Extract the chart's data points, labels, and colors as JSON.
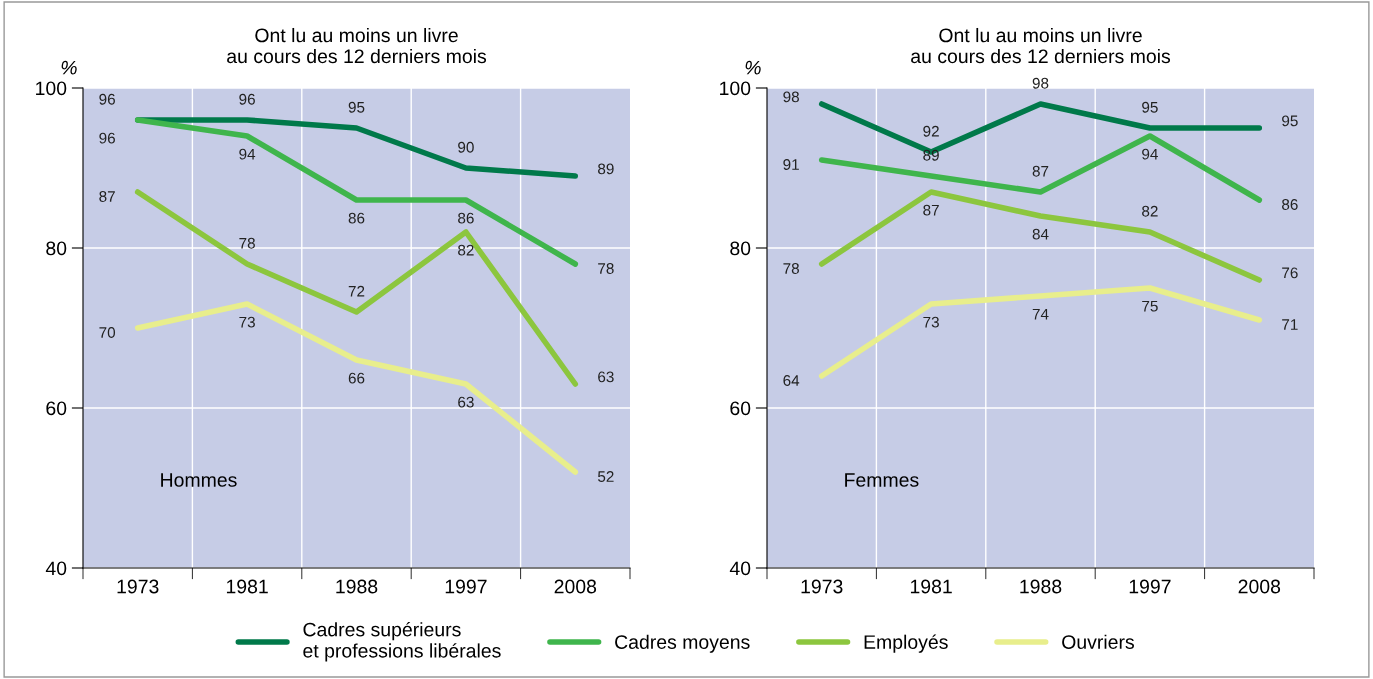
{
  "chart_data": [
    {
      "type": "line",
      "title": "Ont lu au moins un livre\nau cours des 12 derniers mois",
      "ylabel": "%",
      "categories": [
        "1973",
        "1981",
        "1988",
        "1997",
        "2008"
      ],
      "ylim": [
        40,
        100
      ],
      "yticks": [
        40,
        60,
        80,
        100
      ],
      "grid": "y",
      "data_labels": true,
      "legend": "bottom",
      "marker": "none",
      "line_style": "solid",
      "annotations": [
        {
          "text": "Hommes"
        }
      ],
      "series": [
        {
          "name": "Cadres supérieurs\net professions libérales",
          "color": "#00794a",
          "values": [
            96,
            96,
            95,
            90,
            89
          ]
        },
        {
          "name": "Cadres moyens",
          "color": "#3fb54c",
          "values": [
            96,
            94,
            86,
            86,
            78
          ]
        },
        {
          "name": "Employés",
          "color": "#8cc63e",
          "values": [
            87,
            78,
            72,
            82,
            63
          ]
        },
        {
          "name": "Ouvriers",
          "color": "#e8ee8c",
          "values": [
            70,
            73,
            66,
            63,
            52
          ]
        }
      ]
    },
    {
      "type": "line",
      "title": "Ont lu au moins un livre\nau cours des 12 derniers mois",
      "ylabel": "%",
      "categories": [
        "1973",
        "1981",
        "1988",
        "1997",
        "2008"
      ],
      "ylim": [
        40,
        100
      ],
      "yticks": [
        40,
        60,
        80,
        100
      ],
      "grid": "y",
      "data_labels": true,
      "marker": "none",
      "line_style": "solid",
      "annotations": [
        {
          "text": "Femmes"
        }
      ],
      "series": [
        {
          "color": "#00794a",
          "values": [
            98,
            92,
            98,
            95,
            95
          ]
        },
        {
          "color": "#3fb54c",
          "values": [
            91,
            89,
            87,
            94,
            86
          ]
        },
        {
          "color": "#8cc63e",
          "values": [
            78,
            87,
            84,
            82,
            76
          ]
        },
        {
          "color": "#e8ee8c",
          "values": [
            64,
            73,
            74,
            75,
            71
          ]
        }
      ]
    }
  ]
}
